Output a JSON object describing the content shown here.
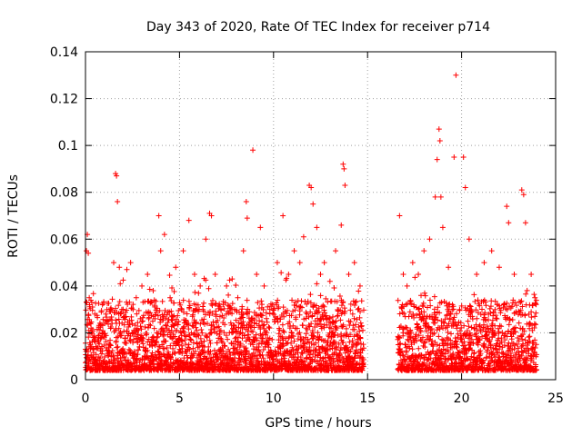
{
  "chart_data": {
    "type": "scatter",
    "title": "Day 343 of 2020, Rate Of TEC Index for receiver p714",
    "xlabel": "GPS time / hours",
    "ylabel": "ROTI / TECUs",
    "xlim": [
      0,
      25
    ],
    "ylim": [
      0,
      0.14
    ],
    "xticks": [
      0,
      5,
      10,
      15,
      20,
      25
    ],
    "xtick_labels": [
      "0",
      "5",
      "10",
      "15",
      "20",
      "25"
    ],
    "yticks": [
      0,
      0.02,
      0.04,
      0.06,
      0.08,
      0.1,
      0.12,
      0.14
    ],
    "ytick_labels": [
      "0",
      "0.02",
      "0.04",
      "0.06",
      "0.08",
      "0.1",
      "0.12",
      "0.14"
    ],
    "grid": true,
    "marker": "plus",
    "color": "#ff0000",
    "data_gap_hours": [
      14.8,
      16.6
    ],
    "series": [
      {
        "name": "ROTI",
        "points": [
          [
            0.0,
            0.013
          ],
          [
            0.05,
            0.055
          ],
          [
            0.1,
            0.062
          ],
          [
            0.15,
            0.054
          ],
          [
            0.2,
            0.035
          ],
          [
            0.3,
            0.022
          ],
          [
            0.5,
            0.028
          ],
          [
            0.7,
            0.018
          ],
          [
            0.9,
            0.032
          ],
          [
            1.2,
            0.025
          ],
          [
            1.5,
            0.05
          ],
          [
            1.6,
            0.088
          ],
          [
            1.65,
            0.087
          ],
          [
            1.7,
            0.076
          ],
          [
            1.8,
            0.048
          ],
          [
            2.0,
            0.03
          ],
          [
            2.2,
            0.047
          ],
          [
            2.4,
            0.05
          ],
          [
            2.7,
            0.035
          ],
          [
            3.0,
            0.04
          ],
          [
            3.3,
            0.045
          ],
          [
            3.6,
            0.038
          ],
          [
            3.9,
            0.07
          ],
          [
            4.0,
            0.055
          ],
          [
            4.2,
            0.062
          ],
          [
            4.5,
            0.035
          ],
          [
            4.8,
            0.048
          ],
          [
            5.2,
            0.055
          ],
          [
            5.5,
            0.068
          ],
          [
            5.8,
            0.045
          ],
          [
            6.1,
            0.04
          ],
          [
            6.4,
            0.06
          ],
          [
            6.6,
            0.071
          ],
          [
            6.7,
            0.07
          ],
          [
            6.9,
            0.045
          ],
          [
            7.2,
            0.03
          ],
          [
            7.5,
            0.04
          ],
          [
            7.8,
            0.043
          ],
          [
            8.1,
            0.035
          ],
          [
            8.4,
            0.055
          ],
          [
            8.55,
            0.076
          ],
          [
            8.6,
            0.069
          ],
          [
            8.9,
            0.098
          ],
          [
            9.1,
            0.045
          ],
          [
            9.3,
            0.065
          ],
          [
            9.5,
            0.04
          ],
          [
            9.8,
            0.03
          ],
          [
            10.2,
            0.05
          ],
          [
            10.5,
            0.07
          ],
          [
            10.8,
            0.045
          ],
          [
            11.1,
            0.055
          ],
          [
            11.4,
            0.05
          ],
          [
            11.6,
            0.061
          ],
          [
            11.9,
            0.083
          ],
          [
            12.0,
            0.082
          ],
          [
            12.1,
            0.075
          ],
          [
            12.3,
            0.065
          ],
          [
            12.5,
            0.045
          ],
          [
            12.7,
            0.05
          ],
          [
            13.0,
            0.042
          ],
          [
            13.3,
            0.055
          ],
          [
            13.6,
            0.066
          ],
          [
            13.7,
            0.092
          ],
          [
            13.75,
            0.09
          ],
          [
            13.8,
            0.083
          ],
          [
            14.0,
            0.045
          ],
          [
            14.3,
            0.05
          ],
          [
            14.6,
            0.04
          ],
          [
            16.7,
            0.07
          ],
          [
            16.9,
            0.045
          ],
          [
            17.1,
            0.04
          ],
          [
            17.4,
            0.05
          ],
          [
            17.7,
            0.045
          ],
          [
            18.0,
            0.055
          ],
          [
            18.3,
            0.06
          ],
          [
            18.6,
            0.078
          ],
          [
            18.7,
            0.094
          ],
          [
            18.8,
            0.107
          ],
          [
            18.85,
            0.102
          ],
          [
            18.9,
            0.078
          ],
          [
            19.0,
            0.065
          ],
          [
            19.3,
            0.048
          ],
          [
            19.6,
            0.095
          ],
          [
            19.7,
            0.13
          ],
          [
            20.1,
            0.095
          ],
          [
            20.2,
            0.082
          ],
          [
            20.4,
            0.06
          ],
          [
            20.8,
            0.045
          ],
          [
            21.2,
            0.05
          ],
          [
            21.6,
            0.055
          ],
          [
            22.0,
            0.048
          ],
          [
            22.4,
            0.074
          ],
          [
            22.5,
            0.067
          ],
          [
            22.8,
            0.045
          ],
          [
            23.2,
            0.081
          ],
          [
            23.3,
            0.079
          ],
          [
            23.4,
            0.067
          ],
          [
            23.7,
            0.045
          ],
          [
            23.9,
            0.035
          ]
        ]
      }
    ]
  }
}
